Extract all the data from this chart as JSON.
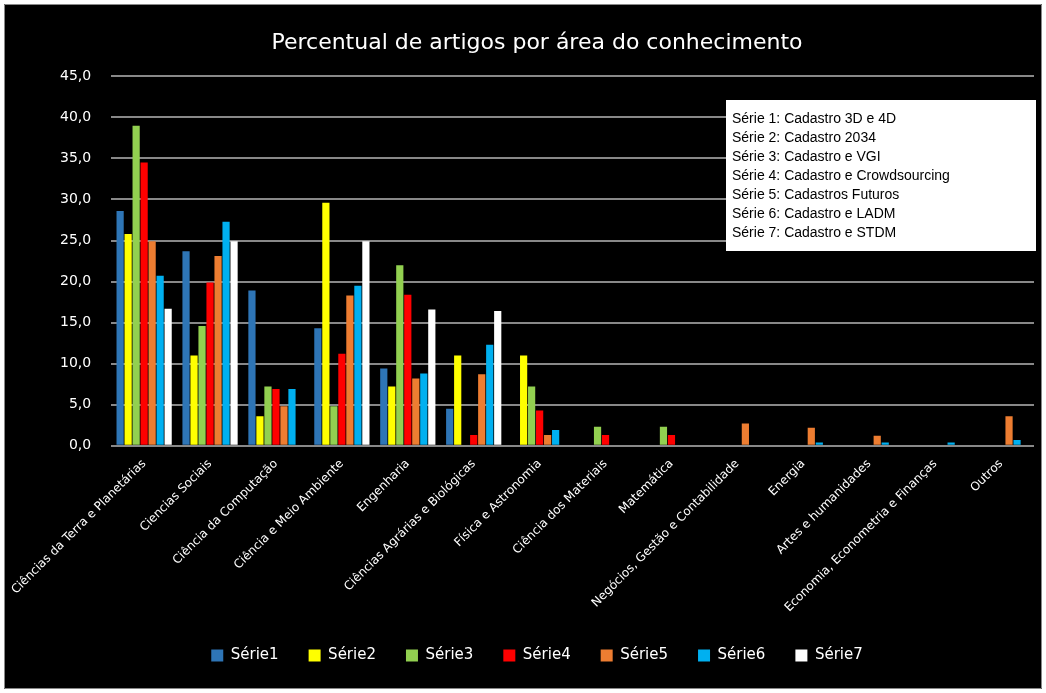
{
  "chart_data": {
    "type": "bar",
    "title": "Percentual de artigos por área do conhecimento",
    "categories": [
      "Ciências da Terra e Planetárias",
      "Ciencias Sociais",
      "Ciência da Computação",
      "Ciência e Meio Ambiente",
      "Engenharia",
      "Ciências Agrárias e Biológicas",
      "Física e Astronomia",
      "Ciência dos Materiais",
      "Matemática",
      "Negócios, Gestão e Contabilidade",
      "Energia",
      "Artes e humanidades",
      "Economia, Econometria e Finanças",
      "Outros"
    ],
    "series": [
      {
        "name": "Série1",
        "color": "#2e75b6",
        "values": [
          28.6,
          23.7,
          18.9,
          14.3,
          9.4,
          4.5,
          null,
          null,
          null,
          null,
          null,
          null,
          null,
          null
        ]
      },
      {
        "name": "Série2",
        "color": "#ffff00",
        "values": [
          25.8,
          11.0,
          3.6,
          29.6,
          7.2,
          11.0,
          11.0,
          null,
          null,
          null,
          null,
          null,
          null,
          null
        ]
      },
      {
        "name": "Série3",
        "color": "#92d050",
        "values": [
          39.0,
          14.6,
          7.2,
          4.8,
          22.0,
          null,
          7.2,
          2.3,
          2.3,
          null,
          null,
          null,
          null,
          null
        ]
      },
      {
        "name": "Série4",
        "color": "#ff0000",
        "values": [
          34.5,
          19.9,
          6.9,
          11.2,
          18.4,
          1.3,
          4.3,
          1.3,
          1.3,
          null,
          null,
          null,
          null,
          null
        ]
      },
      {
        "name": "Série5",
        "color": "#ed7d31",
        "values": [
          24.9,
          23.1,
          4.8,
          18.3,
          8.2,
          8.7,
          1.3,
          null,
          null,
          2.7,
          2.2,
          1.2,
          null,
          3.6
        ]
      },
      {
        "name": "Série6",
        "color": "#00b0f0",
        "values": [
          20.7,
          27.3,
          6.9,
          19.5,
          8.8,
          12.3,
          1.9,
          null,
          null,
          null,
          0.4,
          0.4,
          0.4,
          0.7
        ]
      },
      {
        "name": "Série7",
        "color": "#ffffff",
        "values": [
          16.7,
          24.9,
          null,
          24.9,
          16.6,
          16.4,
          null,
          null,
          null,
          null,
          null,
          null,
          null,
          null
        ]
      }
    ],
    "ylim": [
      0,
      45
    ],
    "yticks": [
      {
        "value": 0,
        "label": "0,0"
      },
      {
        "value": 5,
        "label": "5,0"
      },
      {
        "value": 10,
        "label": "10,0"
      },
      {
        "value": 15,
        "label": "15,0"
      },
      {
        "value": 20,
        "label": "20,0"
      },
      {
        "value": 25,
        "label": "25,0"
      },
      {
        "value": 30,
        "label": "30,0"
      },
      {
        "value": 35,
        "label": "35,0"
      },
      {
        "value": 40,
        "label": "40,0"
      },
      {
        "value": 45,
        "label": "45,0"
      }
    ],
    "grid": "y",
    "legend": "bottom",
    "annotations": [
      "Série 1: Cadastro 3D e 4D",
      "Série 2: Cadastro 2034",
      "Série 3: Cadastro e VGI",
      "Série 4: Cadastro e Crowdsourcing",
      "Série 5: Cadastros Futuros",
      "Série 6: Cadastro e LADM",
      "Série 7: Cadastro e STDM"
    ]
  }
}
